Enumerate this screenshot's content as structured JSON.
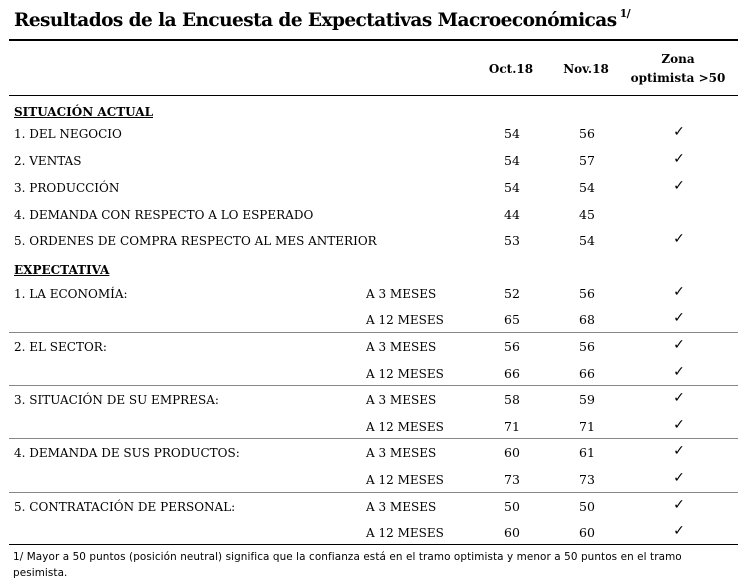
{
  "title": "Resultados de la Encuesta de Expectativas Macroeconómicas",
  "title_note": "1/",
  "headers": {
    "col1": "Oct.18",
    "col2": "Nov.18",
    "zone_line1": "Zona",
    "zone_line2": "optimista >50"
  },
  "sections": [
    {
      "heading": "SITUACIÓN ACTUAL",
      "rows": [
        {
          "label": "1. DEL NEGOCIO",
          "horizon": "",
          "oct": "54",
          "nov": "56",
          "check": "✓"
        },
        {
          "label": "2. VENTAS",
          "horizon": "",
          "oct": "54",
          "nov": "57",
          "check": "✓"
        },
        {
          "label": "3. PRODUCCIÓN",
          "horizon": "",
          "oct": "54",
          "nov": "54",
          "check": "✓"
        },
        {
          "label": "4. DEMANDA CON RESPECTO A LO ESPERADO",
          "horizon": "",
          "oct": "44",
          "nov": "45",
          "check": ""
        },
        {
          "label": "5. ORDENES DE COMPRA RESPECTO AL MES ANTERIOR",
          "horizon": "",
          "oct": "53",
          "nov": "54",
          "check": "✓"
        }
      ]
    },
    {
      "heading": "EXPECTATIVA",
      "rows": [
        {
          "label": "1. LA ECONOMÍA:",
          "horizon": "A 3 MESES",
          "oct": "52",
          "nov": "56",
          "check": "✓"
        },
        {
          "label": "",
          "horizon": "A 12 MESES",
          "oct": "65",
          "nov": "68",
          "check": "✓"
        },
        {
          "label": "2. EL SECTOR:",
          "horizon": "A 3 MESES",
          "oct": "56",
          "nov": "56",
          "check": "✓"
        },
        {
          "label": "",
          "horizon": "A 12 MESES",
          "oct": "66",
          "nov": "66",
          "check": "✓"
        },
        {
          "label": "3. SITUACIÓN DE SU EMPRESA:",
          "horizon": "A 3 MESES",
          "oct": "58",
          "nov": "59",
          "check": "✓"
        },
        {
          "label": "",
          "horizon": "A 12 MESES",
          "oct": "71",
          "nov": "71",
          "check": "✓"
        },
        {
          "label": "4. DEMANDA DE SUS PRODUCTOS:",
          "horizon": "A 3 MESES",
          "oct": "60",
          "nov": "61",
          "check": "✓"
        },
        {
          "label": "",
          "horizon": "A 12 MESES",
          "oct": "73",
          "nov": "73",
          "check": "✓"
        },
        {
          "label": "5. CONTRATACIÓN DE PERSONAL:",
          "horizon": "A 3 MESES",
          "oct": "50",
          "nov": "50",
          "check": "✓"
        },
        {
          "label": "",
          "horizon": "A 12 MESES",
          "oct": "60",
          "nov": "60",
          "check": "✓"
        }
      ]
    }
  ],
  "footnote": "1/ Mayor a 50 puntos (posición neutral) significa que la confianza está en el tramo optimista y menor a 50 puntos en el tramo pesimista."
}
